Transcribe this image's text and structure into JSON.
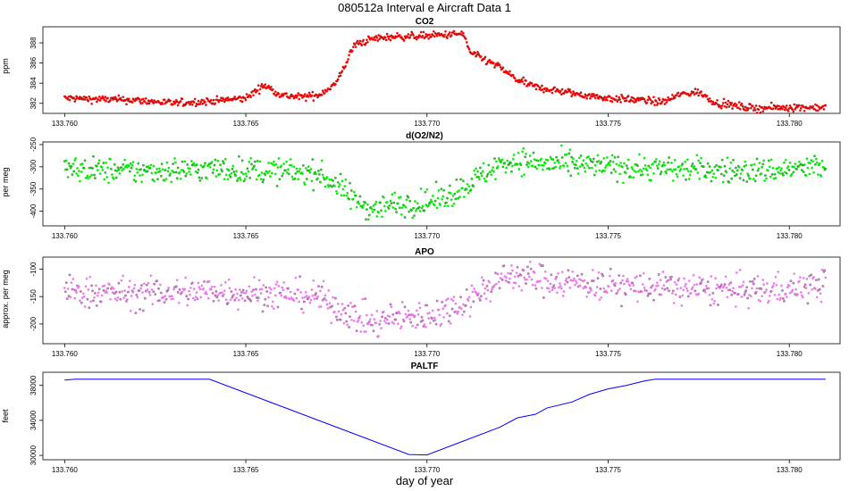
{
  "figure": {
    "title": "080512a   Interval e Aircraft Data 1",
    "xlabel": "day of year"
  },
  "chart_data": [
    {
      "id": "co2",
      "type": "scatter",
      "title": "CO2",
      "ylabel": "ppm",
      "color": "#ff0000",
      "xlim": [
        133.7594,
        133.7814
      ],
      "ylim": [
        381.0,
        389.6
      ],
      "xticks": [
        133.76,
        133.765,
        133.77,
        133.775,
        133.78
      ],
      "xtick_labels": [
        "133.760",
        "133.765",
        "133.770",
        "133.775",
        "133.780"
      ],
      "yticks": [
        382,
        384,
        386,
        388
      ],
      "ytick_labels": [
        "382",
        "384",
        "386",
        "388"
      ],
      "series_profile": {
        "x": [
          133.76,
          133.761,
          133.762,
          133.763,
          133.764,
          133.765,
          133.7655,
          133.766,
          133.7665,
          133.767,
          133.7675,
          133.768,
          133.7685,
          133.769,
          133.77,
          133.771,
          133.7712,
          133.772,
          133.7725,
          133.773,
          133.774,
          133.775,
          133.776,
          133.7765,
          133.777,
          133.7775,
          133.778,
          133.779,
          133.78,
          133.781
        ],
        "y": [
          382.5,
          382.4,
          382.3,
          382.0,
          382.2,
          382.5,
          383.8,
          382.8,
          382.6,
          382.8,
          384.0,
          387.8,
          388.4,
          388.6,
          388.7,
          388.9,
          387.0,
          385.6,
          384.3,
          383.6,
          383.0,
          382.5,
          382.3,
          382.1,
          382.9,
          383.1,
          382.0,
          381.5,
          381.6,
          381.6
        ]
      },
      "noise": 0.18
    },
    {
      "id": "do2n2",
      "type": "scatter",
      "title": "d(O2/N2)",
      "ylabel": "per meg",
      "color": "#00ee00",
      "xlim": [
        133.7594,
        133.7814
      ],
      "ylim": [
        -433,
        -244
      ],
      "xticks": [
        133.76,
        133.765,
        133.77,
        133.775,
        133.78
      ],
      "xtick_labels": [
        "133.760",
        "133.765",
        "133.770",
        "133.775",
        "133.780"
      ],
      "yticks": [
        -400,
        -350,
        -300,
        -250
      ],
      "ytick_labels": [
        "-400",
        "-350",
        "-300",
        "-250"
      ],
      "series_profile": {
        "x": [
          133.76,
          133.762,
          133.764,
          133.766,
          133.767,
          133.7675,
          133.768,
          133.7685,
          133.769,
          133.77,
          133.7705,
          133.771,
          133.7715,
          133.772,
          133.7725,
          133.773,
          133.775,
          133.777,
          133.779,
          133.78,
          133.781
        ],
        "y": [
          -305,
          -310,
          -305,
          -310,
          -315,
          -340,
          -375,
          -395,
          -385,
          -380,
          -370,
          -345,
          -320,
          -295,
          -285,
          -292,
          -300,
          -305,
          -310,
          -305,
          -300
        ]
      },
      "noise": 14
    },
    {
      "id": "apo",
      "type": "scatter",
      "title": "APO",
      "ylabel": "approx. per meg",
      "color": "#ee77ee",
      "xlim": [
        133.7594,
        133.7814
      ],
      "ylim": [
        -236,
        -78
      ],
      "xticks": [
        133.76,
        133.765,
        133.77,
        133.775,
        133.78
      ],
      "xtick_labels": [
        "133.760",
        "133.765",
        "133.770",
        "133.775",
        "133.780"
      ],
      "yticks": [
        -200,
        -150,
        -100
      ],
      "ytick_labels": [
        "-200",
        "-150",
        "-100"
      ],
      "series_profile": {
        "x": [
          133.76,
          133.762,
          133.764,
          133.766,
          133.767,
          133.7675,
          133.768,
          133.7685,
          133.769,
          133.77,
          133.7705,
          133.771,
          133.7715,
          133.772,
          133.7725,
          133.773,
          133.775,
          133.777,
          133.779,
          133.78,
          133.781
        ],
        "y": [
          -140,
          -145,
          -140,
          -145,
          -150,
          -170,
          -185,
          -200,
          -190,
          -185,
          -175,
          -160,
          -140,
          -118,
          -110,
          -118,
          -130,
          -135,
          -140,
          -135,
          -128
        ]
      },
      "noise": 14
    },
    {
      "id": "paltf",
      "type": "line",
      "title": "PALTF",
      "ylabel": "feet",
      "color": "#0000ff",
      "xlim": [
        133.7594,
        133.7814
      ],
      "ylim": [
        29500,
        39500
      ],
      "xticks": [
        133.76,
        133.765,
        133.77,
        133.775,
        133.78
      ],
      "xtick_labels": [
        "133.760",
        "133.765",
        "133.770",
        "133.775",
        "133.780"
      ],
      "yticks": [
        30000,
        34000,
        38000
      ],
      "ytick_labels": [
        "30000",
        "34000",
        "38000"
      ],
      "x": [
        133.76,
        133.7603,
        133.764,
        133.7695,
        133.77,
        133.772,
        133.7725,
        133.773,
        133.7733,
        133.774,
        133.7745,
        133.775,
        133.7755,
        133.776,
        133.7763,
        133.781
      ],
      "y": [
        38600,
        38700,
        38700,
        30100,
        30050,
        33200,
        34300,
        34700,
        35400,
        36100,
        37000,
        37600,
        38000,
        38500,
        38700,
        38700
      ]
    }
  ]
}
